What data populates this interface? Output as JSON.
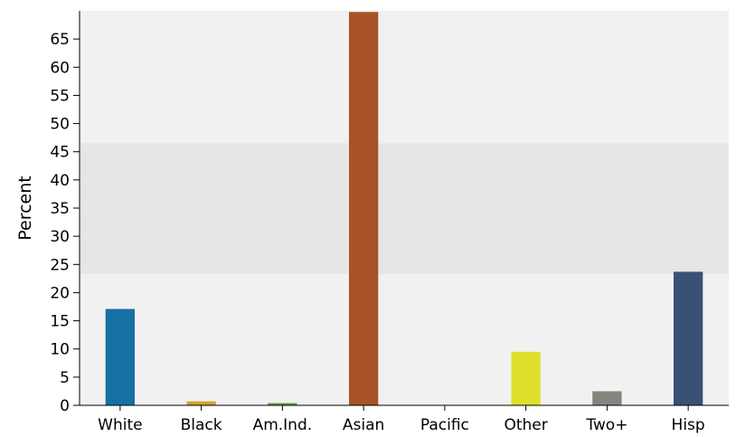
{
  "chart_data": {
    "type": "bar",
    "title": "",
    "xlabel": "",
    "ylabel": "Percent",
    "categories": [
      "White",
      "Black",
      "Am.Ind.",
      "Asian",
      "Pacific",
      "Other",
      "Two+",
      "Hisp"
    ],
    "values": [
      17.1,
      0.7,
      0.4,
      69.8,
      0.1,
      9.5,
      2.5,
      23.7
    ],
    "colors": [
      "#1670a3",
      "#d6a22a",
      "#5a9a40",
      "#a95227",
      "#c9c9c9",
      "#dde02a",
      "#858580",
      "#3a5075"
    ],
    "ylim": [
      0,
      70
    ],
    "yticks": [
      0,
      5,
      10,
      15,
      20,
      25,
      30,
      35,
      40,
      45,
      50,
      55,
      60,
      65
    ],
    "highlight_band": [
      23.3,
      46.5
    ],
    "grid": false,
    "legend": "none",
    "background_color": "#f1f1f1",
    "band_color": "#e6e6e6"
  }
}
